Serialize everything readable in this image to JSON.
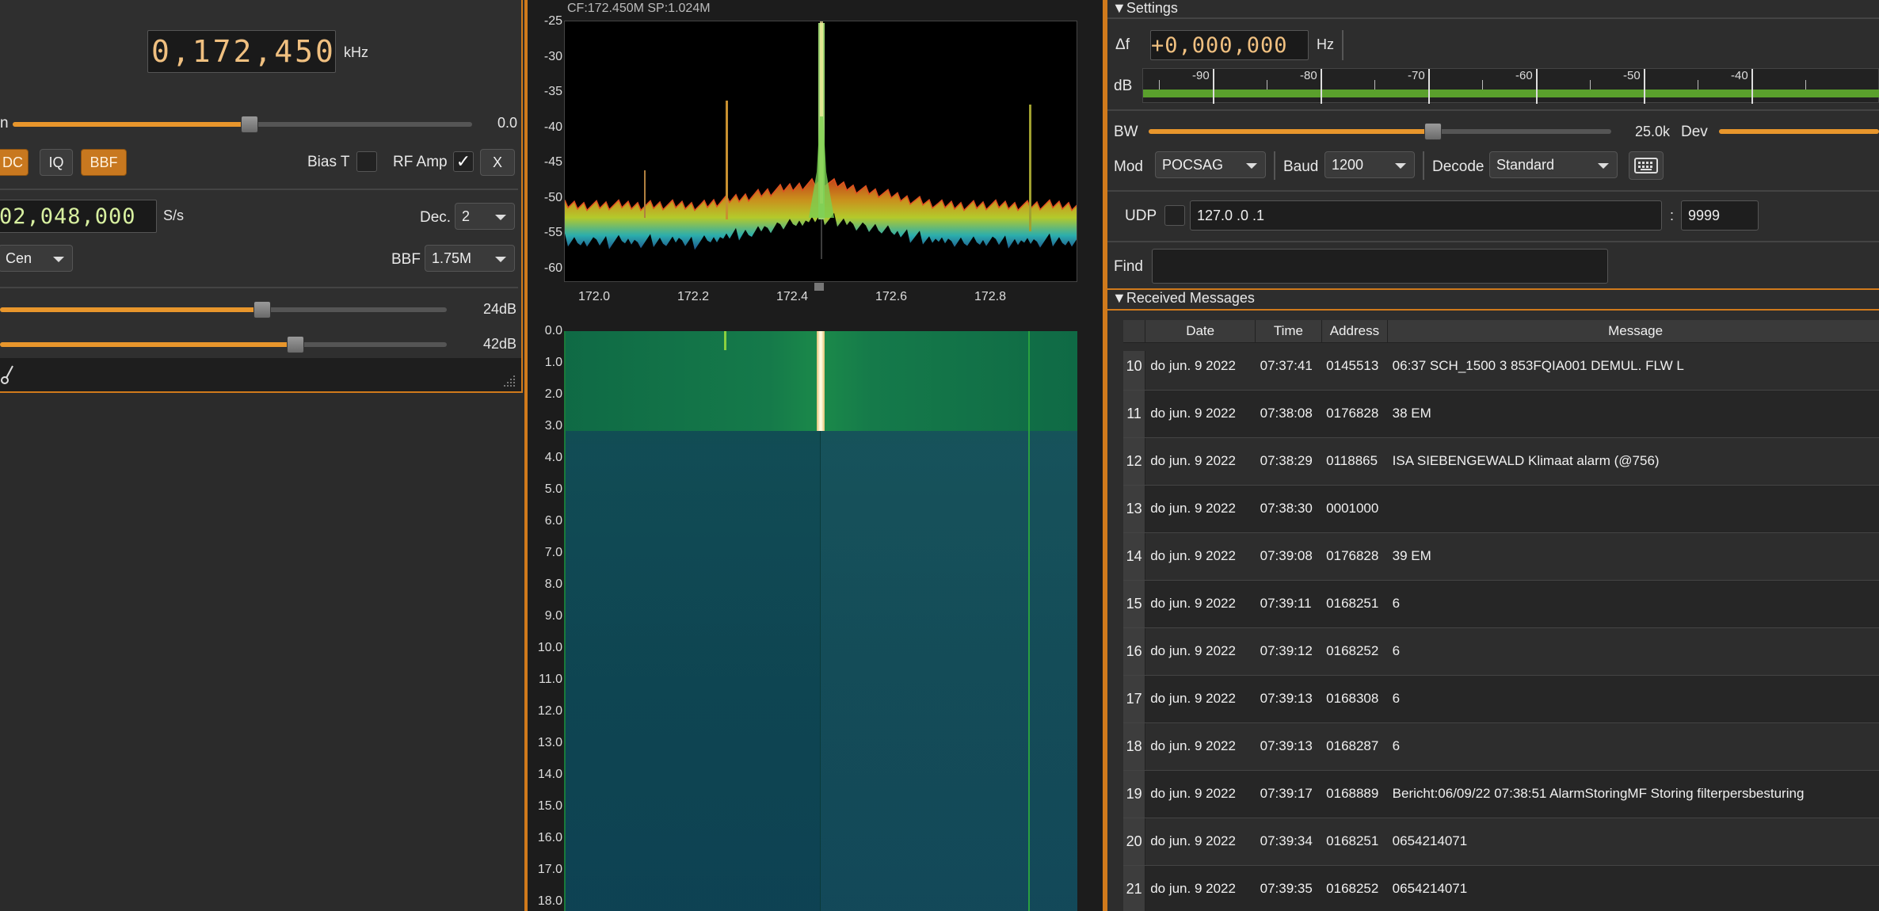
{
  "left": {
    "frequency_digits": "0,172,450",
    "frequency_unit": "kHz",
    "gain_label_partial": "n",
    "gain_value": "0.0",
    "gain_fraction": 0.48,
    "buttons": {
      "dc": "DC",
      "iq": "IQ",
      "bbf": "BBF",
      "close": "X"
    },
    "bias_t_label": "Bias T",
    "rf_amp_label": "RF Amp",
    "rf_amp_check": "✓",
    "sample_rate_digits": "02,048,000",
    "sample_rate_unit": "S/s",
    "dec_label": "Dec.",
    "dec_value": "2",
    "mode_value": "Cen",
    "bbf_label": "BBF",
    "bbf_value": "1.75M",
    "lna_value": "24dB",
    "lna_fraction": 0.59,
    "vga_value": "42dB",
    "vga_fraction": 0.66
  },
  "spectrum": {
    "header": "CF:172.450M SP:1.024M",
    "y_ticks": [
      "-25",
      "-30",
      "-35",
      "-40",
      "-45",
      "-50",
      "-55",
      "-60"
    ],
    "x_ticks": [
      "172.0",
      "172.2",
      "172.4",
      "172.6",
      "172.8"
    ],
    "waterfall_ticks": [
      "0.0",
      "1.0",
      "2.0",
      "3.0",
      "4.0",
      "5.0",
      "6.0",
      "7.0",
      "8.0",
      "9.0",
      "10.0",
      "11.0",
      "12.0",
      "13.0",
      "14.0",
      "15.0",
      "16.0",
      "17.0",
      "18.0"
    ]
  },
  "settings": {
    "title": "▼Settings",
    "delta_f_label": "Δf",
    "delta_f_digits": "+0,000,000",
    "delta_f_unit": "Hz",
    "db_label": "dB",
    "db_ticks": [
      "-90",
      "-80",
      "-70",
      "-60",
      "-50",
      "-40"
    ],
    "bw_label": "BW",
    "bw_value": "25.0k",
    "bw_fraction": 0.62,
    "dev_label": "Dev",
    "mod_label": "Mod",
    "mod_value": "POCSAG",
    "baud_label": "Baud",
    "baud_value": "1200",
    "decode_label": "Decode",
    "decode_value": "Standard",
    "udp_label": "UDP",
    "udp_ip": "127.0  .0  .1",
    "udp_colon": ":",
    "udp_port": "9999",
    "find_label": "Find",
    "find_value": ""
  },
  "messages": {
    "title": "▼Received Messages",
    "columns": [
      "Date",
      "Time",
      "Address",
      "Message"
    ],
    "rows": [
      {
        "n": "10",
        "date": "do jun. 9 2022",
        "time": "07:37:41",
        "address": "0145513",
        "message": " 06:37 SCH_1500 3 853FQIA001 DEMUL. FLW L"
      },
      {
        "n": "11",
        "date": "do jun. 9 2022",
        "time": "07:38:08",
        "address": "0176828",
        "message": "38 EM"
      },
      {
        "n": "12",
        "date": "do jun. 9 2022",
        "time": "07:38:29",
        "address": "0118865",
        "message": "ISA SIEBENGEWALD Klimaat alarm (@756)"
      },
      {
        "n": "13",
        "date": "do jun. 9 2022",
        "time": "07:38:30",
        "address": "0001000",
        "message": ""
      },
      {
        "n": "14",
        "date": "do jun. 9 2022",
        "time": "07:39:08",
        "address": "0176828",
        "message": "39 EM"
      },
      {
        "n": "15",
        "date": "do jun. 9 2022",
        "time": "07:39:11",
        "address": "0168251",
        "message": "6"
      },
      {
        "n": "16",
        "date": "do jun. 9 2022",
        "time": "07:39:12",
        "address": "0168252",
        "message": "6"
      },
      {
        "n": "17",
        "date": "do jun. 9 2022",
        "time": "07:39:13",
        "address": "0168308",
        "message": "6"
      },
      {
        "n": "18",
        "date": "do jun. 9 2022",
        "time": "07:39:13",
        "address": "0168287",
        "message": "6"
      },
      {
        "n": "19",
        "date": "do jun. 9 2022",
        "time": "07:39:17",
        "address": "0168889",
        "message": "Bericht:06/09/22 07:38:51 AlarmStoringMF  Storing filterpersbesturing"
      },
      {
        "n": "20",
        "date": "do jun. 9 2022",
        "time": "07:39:34",
        "address": "0168251",
        "message": "0654214071"
      },
      {
        "n": "21",
        "date": "do jun. 9 2022",
        "time": "07:39:35",
        "address": "0168252",
        "message": "0654214071"
      }
    ]
  },
  "colors": {
    "accent": "#d07a1c",
    "slider": "#e8962c",
    "meter_green": "#5aa02c"
  }
}
